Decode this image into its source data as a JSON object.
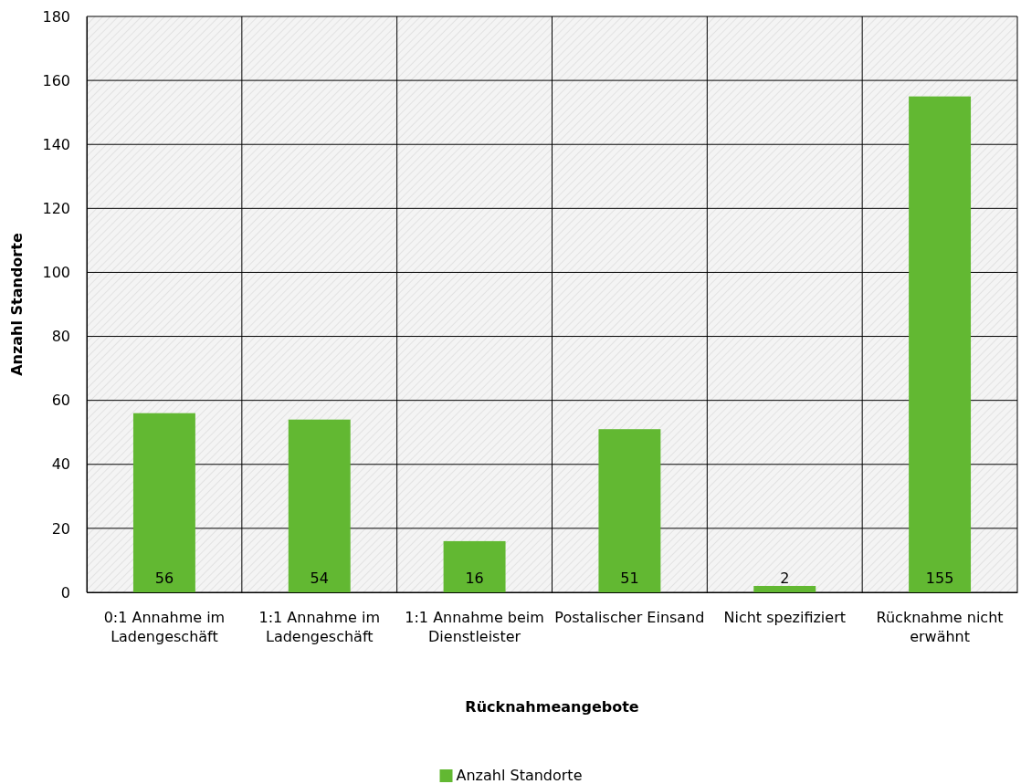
{
  "chart_data": {
    "type": "bar",
    "xlabel": "Rücknahmeangebote",
    "ylabel": "Anzahl Standorte",
    "categories": [
      "0:1 Annahme im Ladengeschäft",
      "1:1 Annahme im Ladengeschäft",
      "1:1 Annahme beim Dienstleister",
      "Postalischer Einsand",
      "Nicht spezifiziert",
      "Rücknahme nicht erwähnt"
    ],
    "series": [
      {
        "name": "Anzahl Standorte",
        "color": "#62b832",
        "values": [
          56,
          54,
          16,
          51,
          2,
          155
        ]
      }
    ],
    "ylim": [
      0,
      180
    ],
    "yticks": [
      0,
      20,
      40,
      60,
      80,
      100,
      120,
      140,
      160,
      180
    ],
    "grid": true,
    "legend": "bottom",
    "data_labels": true
  }
}
